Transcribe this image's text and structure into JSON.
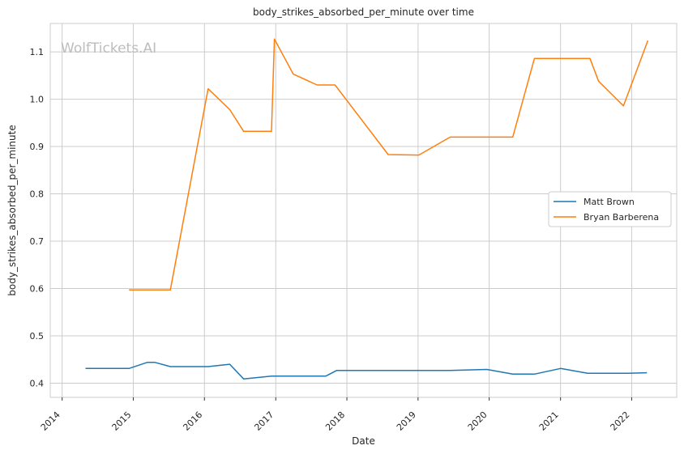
{
  "chart_data": {
    "type": "line",
    "title": "body_strikes_absorbed_per_minute over time",
    "xlabel": "Date",
    "ylabel": "body_strikes_absorbed_per_minute",
    "watermark": "WolfTickets.AI",
    "x_range": [
      "2013-11-01",
      "2022-08-20"
    ],
    "ylim": [
      0.37,
      1.16
    ],
    "yticks": [
      0.4,
      0.5,
      0.6,
      0.7,
      0.8,
      0.9,
      1.0,
      1.1
    ],
    "ytick_labels": [
      "0.4",
      "0.5",
      "0.6",
      "0.7",
      "0.8",
      "0.9",
      "1.0",
      "1.1"
    ],
    "xticks": [
      "2014-01-01",
      "2015-01-01",
      "2016-01-01",
      "2017-01-01",
      "2018-01-01",
      "2019-01-01",
      "2020-01-01",
      "2021-01-01",
      "2022-01-01"
    ],
    "xtick_labels": [
      "2014",
      "2015",
      "2016",
      "2017",
      "2018",
      "2019",
      "2020",
      "2021",
      "2022"
    ],
    "grid": true,
    "legend_position": "center-right",
    "series": [
      {
        "name": "Matt Brown",
        "color": "#1f77b4",
        "points": [
          [
            "2014-05-01",
            0.431
          ],
          [
            "2014-12-10",
            0.431
          ],
          [
            "2015-03-15",
            0.444
          ],
          [
            "2015-04-20",
            0.444
          ],
          [
            "2015-07-10",
            0.435
          ],
          [
            "2016-01-20",
            0.435
          ],
          [
            "2016-05-10",
            0.44
          ],
          [
            "2016-07-20",
            0.409
          ],
          [
            "2016-12-10",
            0.415
          ],
          [
            "2017-09-15",
            0.415
          ],
          [
            "2017-11-10",
            0.427
          ],
          [
            "2019-06-15",
            0.427
          ],
          [
            "2019-12-20",
            0.429
          ],
          [
            "2020-05-01",
            0.419
          ],
          [
            "2020-08-20",
            0.419
          ],
          [
            "2021-01-01",
            0.431
          ],
          [
            "2021-05-20",
            0.421
          ],
          [
            "2021-12-10",
            0.421
          ],
          [
            "2022-03-20",
            0.422
          ]
        ]
      },
      {
        "name": "Bryan Barberena",
        "color": "#ff7f0e",
        "points": [
          [
            "2014-12-10",
            0.597
          ],
          [
            "2015-07-10",
            0.597
          ],
          [
            "2016-01-20",
            1.022
          ],
          [
            "2016-05-10",
            0.978
          ],
          [
            "2016-07-20",
            0.932
          ],
          [
            "2016-12-10",
            0.932
          ],
          [
            "2016-12-25",
            1.127
          ],
          [
            "2017-04-01",
            1.053
          ],
          [
            "2017-08-01",
            1.03
          ],
          [
            "2017-11-01",
            1.03
          ],
          [
            "2018-08-01",
            0.883
          ],
          [
            "2019-01-05",
            0.882
          ],
          [
            "2019-06-15",
            0.92
          ],
          [
            "2020-05-01",
            0.92
          ],
          [
            "2020-08-20",
            1.086
          ],
          [
            "2021-06-01",
            1.086
          ],
          [
            "2021-07-15",
            1.038
          ],
          [
            "2021-11-20",
            0.986
          ],
          [
            "2022-03-25",
            1.124
          ]
        ]
      }
    ]
  }
}
